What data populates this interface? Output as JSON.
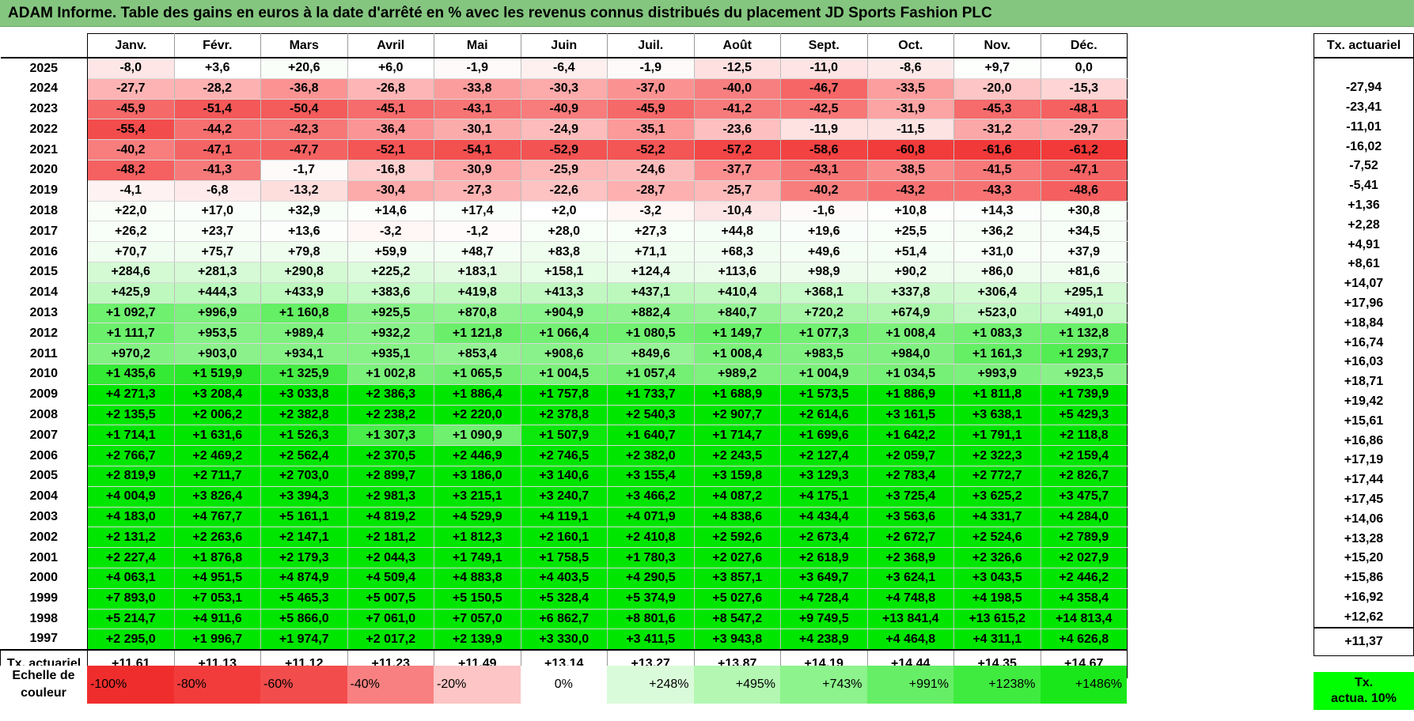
{
  "title": "ADAM Informe. Table des gains en euros à la date d'arrêté en % avec les revenus connus distribués du placement JD Sports Fashion PLC",
  "months": [
    "Janv.",
    "Févr.",
    "Mars",
    "Avril",
    "Mai",
    "Juin",
    "Juil.",
    "Août",
    "Sept.",
    "Oct.",
    "Nov.",
    "Déc."
  ],
  "side_header": "Tx. actuariel",
  "rows": [
    {
      "year": "2025",
      "values": [
        "-8,0",
        "+3,6",
        "+20,6",
        "+6,0",
        "-1,9",
        "-6,4",
        "-1,9",
        "-12,5",
        "-11,0",
        "-8,6",
        "+9,7",
        "0,0"
      ],
      "colors": [
        "#fee6e6",
        "#ffffff",
        "#f9fef9",
        "#fefffe",
        "#fffafa",
        "#fff0f0",
        "#fffafa",
        "#fee0e0",
        "#fee4e4",
        "#fee9e9",
        "#fdfffd",
        "#ffffff"
      ],
      "tx": ""
    },
    {
      "year": "2024",
      "values": [
        "-27,7",
        "-28,2",
        "-36,8",
        "-26,8",
        "-33,8",
        "-30,3",
        "-37,0",
        "-40,0",
        "-46,7",
        "-33,5",
        "-20,0",
        "-15,3"
      ],
      "colors": [
        "#fdb3b3",
        "#fdb1b1",
        "#fb9393",
        "#fdb5b5",
        "#fc9d9d",
        "#fcaaaa",
        "#fb9292",
        "#f87f7f",
        "#f66666",
        "#fc9e9e",
        "#fdc5c5",
        "#fed4d4"
      ],
      "tx": "-27,94"
    },
    {
      "year": "2023",
      "values": [
        "-45,9",
        "-51,4",
        "-50,4",
        "-45,1",
        "-43,1",
        "-40,9",
        "-45,9",
        "-41,2",
        "-42,5",
        "-31,9",
        "-45,3",
        "-48,1"
      ],
      "colors": [
        "#f66969",
        "#f45858",
        "#f45b5b",
        "#f66c6c",
        "#f77474",
        "#f87c7c",
        "#f66969",
        "#f77b7b",
        "#f77676",
        "#fca4a4",
        "#f66b6b",
        "#f56161"
      ],
      "tx": "-23,41"
    },
    {
      "year": "2022",
      "values": [
        "-55,4",
        "-44,2",
        "-42,3",
        "-36,4",
        "-30,1",
        "-24,9",
        "-35,1",
        "-23,6",
        "-11,9",
        "-11,5",
        "-31,2",
        "-29,7"
      ],
      "colors": [
        "#f34c4c",
        "#f77070",
        "#f77777",
        "#fb9595",
        "#fcabab",
        "#fdbbbb",
        "#fc9999",
        "#fdbfbf",
        "#fee2e2",
        "#fee3e3",
        "#fca7a7",
        "#fcacac"
      ],
      "tx": "-11,01"
    },
    {
      "year": "2021",
      "values": [
        "-40,2",
        "-47,1",
        "-47,7",
        "-52,1",
        "-54,1",
        "-52,9",
        "-52,2",
        "-57,2",
        "-58,6",
        "-60,8",
        "-61,6",
        "-61,2"
      ],
      "colors": [
        "#f87e7e",
        "#f56464",
        "#f56262",
        "#f45555",
        "#f35050",
        "#f35353",
        "#f45555",
        "#f34646",
        "#f24242",
        "#f23b3b",
        "#f23939",
        "#f23a3a"
      ],
      "tx": "-16,02"
    },
    {
      "year": "2020",
      "values": [
        "-48,2",
        "-41,3",
        "-1,7",
        "-16,8",
        "-30,9",
        "-25,9",
        "-24,6",
        "-37,7",
        "-43,1",
        "-38,5",
        "-41,5",
        "-47,1"
      ],
      "colors": [
        "#f56060",
        "#f77a7a",
        "#fffafa",
        "#fed0d0",
        "#fca8a8",
        "#fdb8b8",
        "#fdbcbc",
        "#fb8f8f",
        "#f77474",
        "#fa8b8b",
        "#f77979",
        "#f56464"
      ],
      "tx": "-7,52"
    },
    {
      "year": "2019",
      "values": [
        "-4,1",
        "-6,8",
        "-13,2",
        "-30,4",
        "-27,3",
        "-22,6",
        "-28,7",
        "-25,7",
        "-40,2",
        "-43,2",
        "-43,3",
        "-48,6"
      ],
      "colors": [
        "#fff2f2",
        "#feeaea",
        "#fedddd",
        "#fcaaaa",
        "#fdb4b4",
        "#fdc2c2",
        "#fdb0b0",
        "#fdb8b8",
        "#f87e7e",
        "#f77373",
        "#f77373",
        "#f55f5f"
      ],
      "tx": "-5,41"
    },
    {
      "year": "2018",
      "values": [
        "+22,0",
        "+17,0",
        "+32,9",
        "+14,6",
        "+17,4",
        "+2,0",
        "-3,2",
        "-10,4",
        "-1,6",
        "+10,8",
        "+14,3",
        "+30,8"
      ],
      "colors": [
        "#f9fef9",
        "#fafefa",
        "#f7fef7",
        "#fbfefb",
        "#fafefa",
        "#ffffff",
        "#fff6f6",
        "#fee5e5",
        "#fffafa",
        "#fcfffc",
        "#fbfefb",
        "#f8fef8"
      ],
      "tx": "+1,36"
    },
    {
      "year": "2017",
      "values": [
        "+26,2",
        "+23,7",
        "+13,6",
        "-3,2",
        "-1,2",
        "+28,0",
        "+27,3",
        "+44,8",
        "+19,6",
        "+25,5",
        "+36,2",
        "+34,5"
      ],
      "colors": [
        "#f8fef8",
        "#f9fef9",
        "#fbfefb",
        "#fff6f6",
        "#fffbfb",
        "#f8fef8",
        "#f8fef8",
        "#f5fef5",
        "#fafefa",
        "#f8fef8",
        "#f6fef6",
        "#f7fef7"
      ],
      "tx": "+2,28"
    },
    {
      "year": "2016",
      "values": [
        "+70,7",
        "+75,7",
        "+79,8",
        "+59,9",
        "+48,7",
        "+83,8",
        "+71,1",
        "+68,3",
        "+49,6",
        "+51,4",
        "+31,0",
        "+37,9"
      ],
      "colors": [
        "#f1fdf1",
        "#f0fdf0",
        "#effdef",
        "#f3fdf3",
        "#f5fef5",
        "#eefdee",
        "#f1fdf1",
        "#f2fdf2",
        "#f5fef5",
        "#f4fef4",
        "#f8fef8",
        "#f7fef7"
      ],
      "tx": "+4,91"
    },
    {
      "year": "2015",
      "values": [
        "+284,6",
        "+281,3",
        "+290,8",
        "+225,2",
        "+183,1",
        "+158,1",
        "+124,4",
        "+113,6",
        "+98,9",
        "+90,2",
        "+86,0",
        "+81,6"
      ],
      "colors": [
        "#d4fad4",
        "#d5fad5",
        "#d3fad3",
        "#dcfbdc",
        "#e1fbe1",
        "#e5fce5",
        "#e9fce9",
        "#ebfceb",
        "#edfced",
        "#eefdee",
        "#eefdee",
        "#effdef"
      ],
      "tx": "+8,61"
    },
    {
      "year": "2014",
      "values": [
        "+425,9",
        "+444,3",
        "+433,9",
        "+383,6",
        "+419,8",
        "+413,3",
        "+437,1",
        "+410,4",
        "+368,1",
        "+337,8",
        "+306,4",
        "+295,1"
      ],
      "colors": [
        "#bff8bf",
        "#bbf8bb",
        "#bdf8bd",
        "#c5f9c5",
        "#c0f8c0",
        "#c1f8c1",
        "#bcf8bc",
        "#c1f8c1",
        "#c8f9c8",
        "#ccf9cc",
        "#d1fad1",
        "#d3fad3"
      ],
      "tx": "+14,07"
    },
    {
      "year": "2013",
      "values": [
        "+1 092,7",
        "+996,9",
        "+1 160,8",
        "+925,5",
        "+870,8",
        "+904,9",
        "+882,4",
        "+840,7",
        "+720,2",
        "+674,9",
        "+523,0",
        "+491,0"
      ],
      "colors": [
        "#6ff06f",
        "#7df17d",
        "#65ef65",
        "#88f288",
        "#90f390",
        "#8bf38b",
        "#8ef38e",
        "#95f395",
        "#a6f5a6",
        "#acf6ac",
        "#c1f8c1",
        "#c6f9c6"
      ],
      "tx": "+17,96"
    },
    {
      "year": "2012",
      "values": [
        "+1 111,7",
        "+953,5",
        "+989,4",
        "+932,2",
        "+1 121,8",
        "+1 066,4",
        "+1 080,5",
        "+1 149,7",
        "+1 077,3",
        "+1 008,4",
        "+1 083,3",
        "+1 132,8"
      ],
      "colors": [
        "#6cf06c",
        "#84f284",
        "#7ef17e",
        "#87f287",
        "#6bef6b",
        "#73f073",
        "#71f071",
        "#67ef67",
        "#72f072",
        "#7bf17b",
        "#71f071",
        "#69ef69"
      ],
      "tx": "+18,84"
    },
    {
      "year": "2011",
      "values": [
        "+970,2",
        "+903,0",
        "+934,1",
        "+935,1",
        "+853,4",
        "+908,6",
        "+849,6",
        "+1 008,4",
        "+983,5",
        "+984,0",
        "+1 161,3",
        "+1 293,7"
      ],
      "colors": [
        "#81f181",
        "#8bf28b",
        "#86f286",
        "#86f286",
        "#93f393",
        "#8af28a",
        "#94f394",
        "#7bf17b",
        "#80f180",
        "#80f180",
        "#65ef65",
        "#52ed52"
      ],
      "tx": "+16,74"
    },
    {
      "year": "2010",
      "values": [
        "+1 435,6",
        "+1 519,9",
        "+1 325,9",
        "+1 002,8",
        "+1 065,5",
        "+1 004,5",
        "+1 057,4",
        "+989,2",
        "+1 004,9",
        "+1 034,5",
        "+993,9",
        "+923,5"
      ],
      "colors": [
        "#35ea35",
        "#2ae92a",
        "#46ec46",
        "#7bf17b",
        "#73f073",
        "#7bf17b",
        "#74f074",
        "#7ef17e",
        "#7bf17b",
        "#77f077",
        "#7df17d",
        "#88f288"
      ],
      "tx": "+16,03"
    },
    {
      "year": "2009",
      "values": [
        "+4 271,3",
        "+3 208,4",
        "+3 033,8",
        "+2 386,3",
        "+1 886,4",
        "+1 757,8",
        "+1 733,7",
        "+1 688,9",
        "+1 573,5",
        "+1 886,9",
        "+1 811,8",
        "+1 739,9"
      ],
      "colors": [
        "#00e600",
        "#00e600",
        "#00e600",
        "#00e600",
        "#00e600",
        "#00e600",
        "#00e600",
        "#00e600",
        "#04e704",
        "#00e600",
        "#00e600",
        "#00e600"
      ],
      "tx": "+18,71"
    },
    {
      "year": "2008",
      "values": [
        "+2 135,5",
        "+2 006,2",
        "+2 382,8",
        "+2 238,2",
        "+2 220,0",
        "+2 378,8",
        "+2 540,3",
        "+2 907,7",
        "+2 614,6",
        "+3 161,5",
        "+3 638,1",
        "+5 429,3"
      ],
      "colors": [
        "#00e600",
        "#00e600",
        "#00e600",
        "#00e600",
        "#00e600",
        "#00e600",
        "#00e600",
        "#00e600",
        "#00e600",
        "#00e600",
        "#00e600",
        "#00e600"
      ],
      "tx": "+19,42"
    },
    {
      "year": "2007",
      "values": [
        "+1 714,1",
        "+1 631,6",
        "+1 526,3",
        "+1 307,3",
        "+1 090,9",
        "+1 507,9",
        "+1 640,7",
        "+1 714,7",
        "+1 699,6",
        "+1 642,2",
        "+1 791,1",
        "+2 118,8"
      ],
      "colors": [
        "#00e600",
        "#00e600",
        "#09e709",
        "#49ec49",
        "#6ff06f",
        "#0ce80c",
        "#00e600",
        "#00e600",
        "#00e600",
        "#00e600",
        "#00e600",
        "#00e600"
      ],
      "tx": "+15,61"
    },
    {
      "year": "2006",
      "values": [
        "+2 766,7",
        "+2 469,2",
        "+2 562,4",
        "+2 370,5",
        "+2 446,9",
        "+2 746,5",
        "+2 382,0",
        "+2 243,5",
        "+2 127,4",
        "+2 059,7",
        "+2 322,3",
        "+2 159,4"
      ],
      "colors": [
        "#00e600",
        "#00e600",
        "#00e600",
        "#00e600",
        "#00e600",
        "#00e600",
        "#00e600",
        "#00e600",
        "#00e600",
        "#00e600",
        "#00e600",
        "#00e600"
      ],
      "tx": "+16,86"
    },
    {
      "year": "2005",
      "values": [
        "+2 819,9",
        "+2 711,7",
        "+2 703,0",
        "+2 899,7",
        "+3 186,0",
        "+3 140,6",
        "+3 155,4",
        "+3 159,8",
        "+3 129,3",
        "+2 783,4",
        "+2 772,7",
        "+2 826,7"
      ],
      "colors": [
        "#00e600",
        "#00e600",
        "#00e600",
        "#00e600",
        "#00e600",
        "#00e600",
        "#00e600",
        "#00e600",
        "#00e600",
        "#00e600",
        "#00e600",
        "#00e600"
      ],
      "tx": "+17,19"
    },
    {
      "year": "2004",
      "values": [
        "+4 004,9",
        "+3 826,4",
        "+3 394,3",
        "+2 981,3",
        "+3 215,1",
        "+3 240,7",
        "+3 466,2",
        "+4 087,2",
        "+4 175,1",
        "+3 725,4",
        "+3 625,2",
        "+3 475,7"
      ],
      "colors": [
        "#00e600",
        "#00e600",
        "#00e600",
        "#00e600",
        "#00e600",
        "#00e600",
        "#00e600",
        "#00e600",
        "#00e600",
        "#00e600",
        "#00e600",
        "#00e600"
      ],
      "tx": "+17,44"
    },
    {
      "year": "2003",
      "values": [
        "+4 183,0",
        "+4 767,7",
        "+5 161,1",
        "+4 819,2",
        "+4 529,9",
        "+4 119,1",
        "+4 071,9",
        "+4 838,6",
        "+4 434,4",
        "+3 563,6",
        "+4 331,7",
        "+4 284,0"
      ],
      "colors": [
        "#00e600",
        "#00e600",
        "#00e600",
        "#00e600",
        "#00e600",
        "#00e600",
        "#00e600",
        "#00e600",
        "#00e600",
        "#00e600",
        "#00e600",
        "#00e600"
      ],
      "tx": "+17,45"
    },
    {
      "year": "2002",
      "values": [
        "+2 131,2",
        "+2 263,6",
        "+2 147,1",
        "+2 181,2",
        "+1 812,3",
        "+2 160,1",
        "+2 410,8",
        "+2 592,6",
        "+2 673,4",
        "+2 672,7",
        "+2 524,6",
        "+2 789,9"
      ],
      "colors": [
        "#00e600",
        "#00e600",
        "#00e600",
        "#00e600",
        "#00e600",
        "#00e600",
        "#00e600",
        "#00e600",
        "#00e600",
        "#00e600",
        "#00e600",
        "#00e600"
      ],
      "tx": "+14,06"
    },
    {
      "year": "2001",
      "values": [
        "+2 227,4",
        "+1 876,8",
        "+2 179,3",
        "+2 044,3",
        "+1 749,1",
        "+1 758,5",
        "+1 780,3",
        "+2 027,6",
        "+2 618,9",
        "+2 368,9",
        "+2 326,6",
        "+2 027,9"
      ],
      "colors": [
        "#00e600",
        "#00e600",
        "#00e600",
        "#00e600",
        "#00e600",
        "#00e600",
        "#00e600",
        "#00e600",
        "#00e600",
        "#00e600",
        "#00e600",
        "#00e600"
      ],
      "tx": "+13,28"
    },
    {
      "year": "2000",
      "values": [
        "+4 063,1",
        "+4 951,5",
        "+4 874,9",
        "+4 509,4",
        "+4 883,8",
        "+4 403,5",
        "+4 290,5",
        "+3 857,1",
        "+3 649,7",
        "+3 624,1",
        "+3 043,5",
        "+2 446,2"
      ],
      "colors": [
        "#00e600",
        "#00e600",
        "#00e600",
        "#00e600",
        "#00e600",
        "#00e600",
        "#00e600",
        "#00e600",
        "#00e600",
        "#00e600",
        "#00e600",
        "#00e600"
      ],
      "tx": "+15,20"
    },
    {
      "year": "1999",
      "values": [
        "+7 893,0",
        "+7 053,1",
        "+5 465,3",
        "+5 007,5",
        "+5 150,5",
        "+5 328,4",
        "+5 374,9",
        "+5 027,6",
        "+4 728,4",
        "+4 748,8",
        "+4 198,5",
        "+4 358,4"
      ],
      "colors": [
        "#00e600",
        "#00e600",
        "#00e600",
        "#00e600",
        "#00e600",
        "#00e600",
        "#00e600",
        "#00e600",
        "#00e600",
        "#00e600",
        "#00e600",
        "#00e600"
      ],
      "tx": "+15,86"
    },
    {
      "year": "1998",
      "values": [
        "+5 214,7",
        "+4 911,6",
        "+5 866,0",
        "+7 061,0",
        "+7 057,0",
        "+6 862,7",
        "+8 801,6",
        "+8 547,2",
        "+9 749,5",
        "+13 841,4",
        "+13 615,2",
        "+14 813,4"
      ],
      "colors": [
        "#00e600",
        "#00e600",
        "#00e600",
        "#00e600",
        "#00e600",
        "#00e600",
        "#00e600",
        "#00e600",
        "#00e600",
        "#00e600",
        "#00e600",
        "#00e600"
      ],
      "tx": "+16,92"
    },
    {
      "year": "1997",
      "values": [
        "+2 295,0",
        "+1 996,7",
        "+1 974,7",
        "+2 017,2",
        "+2 139,9",
        "+3 330,0",
        "+3 411,5",
        "+3 943,8",
        "+4 238,9",
        "+4 464,8",
        "+4 311,1",
        "+4 626,8"
      ],
      "colors": [
        "#00e600",
        "#00e600",
        "#00e600",
        "#00e600",
        "#00e600",
        "#00e600",
        "#00e600",
        "#00e600",
        "#00e600",
        "#00e600",
        "#00e600",
        "#00e600"
      ],
      "tx": "+12,62"
    }
  ],
  "footer": {
    "label": "Tx. actuariel",
    "values": [
      "+11,61",
      "+11,13",
      "+11,12",
      "+11,23",
      "+11,49",
      "+13,14",
      "+13,27",
      "+13,87",
      "+14,19",
      "+14,44",
      "+14,35",
      "+14,67"
    ],
    "total": "+11,37"
  },
  "legend": {
    "label_line1": "Echelle de",
    "label_line2": "couleur",
    "swatches": [
      {
        "label": "-100%",
        "color": "#f02d2d",
        "kind": "neg"
      },
      {
        "label": "-80%",
        "color": "#f23c3c",
        "kind": "neg"
      },
      {
        "label": "-60%",
        "color": "#f34c4c",
        "kind": "neg"
      },
      {
        "label": "-40%",
        "color": "#f88080",
        "kind": "neg"
      },
      {
        "label": "-20%",
        "color": "#fdc5c5",
        "kind": "neg"
      },
      {
        "label": "0%",
        "color": "#ffffff",
        "kind": "zero"
      },
      {
        "label": "+248%",
        "color": "#dafbda",
        "kind": "pos"
      },
      {
        "label": "+495%",
        "color": "#b3f7b3",
        "kind": "pos"
      },
      {
        "label": "+743%",
        "color": "#8df38d",
        "kind": "pos"
      },
      {
        "label": "+991%",
        "color": "#66ef66",
        "kind": "pos"
      },
      {
        "label": "+1238%",
        "color": "#40eb40",
        "kind": "pos"
      },
      {
        "label": "+1486%",
        "color": "#1ae71a",
        "kind": "pos"
      }
    ],
    "tx_line1": "Tx.",
    "tx_line2": "actua. 10%",
    "tx_color": "#00ff00"
  }
}
